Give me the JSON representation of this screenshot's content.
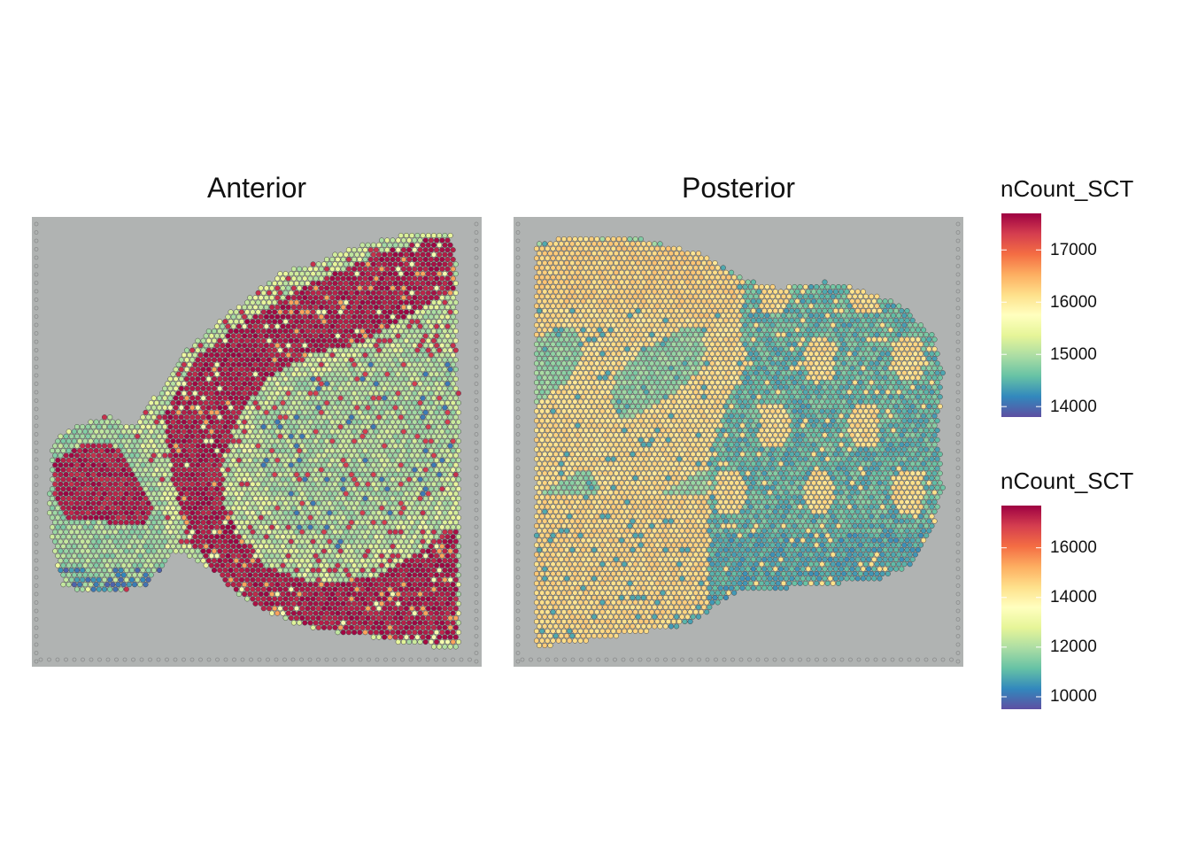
{
  "chart_data": [
    {
      "type": "scatter",
      "subtype": "spatial-spot-map",
      "title": "Anterior",
      "color_feature": "nCount_SCT",
      "legend_title": "nCount_SCT",
      "legend_ticks": [
        "17000",
        "16000",
        "15000",
        "14000"
      ],
      "legend_tick_values": [
        17000,
        16000,
        15000,
        14000
      ],
      "color_range": [
        13800,
        17700
      ],
      "palette": "Spectral (reversed)",
      "regions": [
        {
          "region": "olfactory bulb core",
          "approx_value": 17500
        },
        {
          "region": "olfactory bulb shell",
          "approx_value": 14900
        },
        {
          "region": "cortex band",
          "approx_value": 17600
        },
        {
          "region": "striatum",
          "approx_value": 15000
        },
        {
          "region": "outer cortex layer",
          "approx_value": 15000
        }
      ]
    },
    {
      "type": "scatter",
      "subtype": "spatial-spot-map",
      "title": "Posterior",
      "color_feature": "nCount_SCT",
      "legend_title": "nCount_SCT",
      "legend_ticks": [
        "16000",
        "14000",
        "12000",
        "10000"
      ],
      "legend_tick_values": [
        16000,
        14000,
        12000,
        10000
      ],
      "color_range": [
        9500,
        17700
      ],
      "palette": "Spectral (reversed)",
      "regions": [
        {
          "region": "cortex / hippocampus (left)",
          "approx_value": 13600
        },
        {
          "region": "midbrain/hindbrain (right)",
          "approx_value": 10800
        },
        {
          "region": "cerebellar folia",
          "approx_value": 13000
        }
      ]
    }
  ],
  "colors": {
    "palette_stops": [
      "#9E0142",
      "#D53E4F",
      "#F46D43",
      "#FDAE61",
      "#FEE08B",
      "#FFFFBF",
      "#E6F598",
      "#ABDDA4",
      "#66C2A5",
      "#3288BD",
      "#5E4FA2"
    ],
    "tissue_background": "#b0b3b2",
    "tissue_stain": "#8f6ea0"
  }
}
